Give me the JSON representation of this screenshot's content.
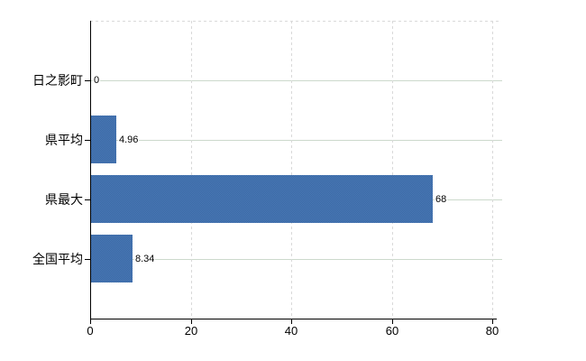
{
  "chart_data": {
    "type": "bar",
    "orientation": "horizontal",
    "title": "",
    "xlabel": "",
    "ylabel": "",
    "categories": [
      "日之影町",
      "県平均",
      "県最大",
      "全国平均"
    ],
    "values": [
      0,
      4.96,
      68,
      8.34
    ],
    "value_labels": [
      "0",
      "4.96",
      "68",
      "8.34"
    ],
    "x_ticks": [
      0,
      20,
      40,
      60,
      80
    ],
    "x_tick_labels": [
      "0",
      "20",
      "40",
      "60",
      "80"
    ],
    "xlim": [
      0,
      80
    ],
    "grid": true,
    "legend": "none",
    "colors": {
      "bar": "#4170ad",
      "bar_dither_light": "#4a7ab6",
      "bar_dither_dark": "#3a67a4",
      "horizontal_gridline": "#ccd9cc",
      "vertical_gridline": "#d9d9d9",
      "axis": "#000000",
      "text": "#000000",
      "background": "#ffffff"
    }
  }
}
